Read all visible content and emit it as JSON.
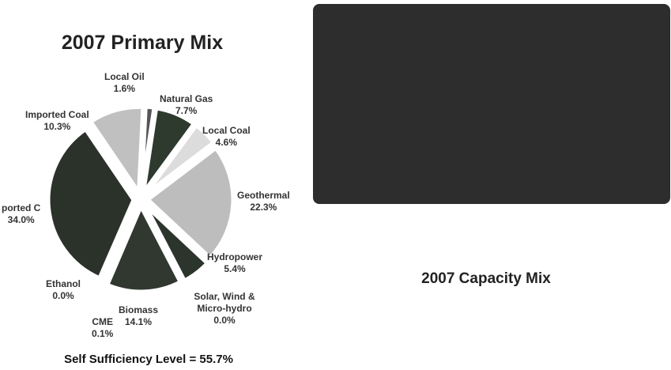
{
  "chart_data": {
    "type": "pie",
    "title": "2007  Primary Mix",
    "slices": [
      {
        "label": "Local Oil",
        "value_label": "1.6%",
        "value": 1.6,
        "color": "#555555"
      },
      {
        "label": "Natural Gas",
        "value_label": "7.7%",
        "value": 7.7,
        "color": "#2f3a2f"
      },
      {
        "label": "Local Coal",
        "value_label": "4.6%",
        "value": 4.6,
        "color": "#dcdcdc"
      },
      {
        "label": "Geothermal",
        "value_label": "22.3%",
        "value": 22.3,
        "color": "#bdbdbd"
      },
      {
        "label": "Hydropower",
        "value_label": "5.4%",
        "value": 5.4,
        "color": "#2c352c"
      },
      {
        "label": "Solar, Wind & Micro-hydro",
        "value_label": "0.0%",
        "value": 0.0,
        "color": "#ffffff"
      },
      {
        "label": "Biomass",
        "value_label": "14.1%",
        "value": 14.1,
        "color": "#303830"
      },
      {
        "label": "CME",
        "value_label": "0.1%",
        "value": 0.1,
        "color": "#aaaaaa"
      },
      {
        "label": "Ethanol",
        "value_label": "0.0%",
        "value": 0.0,
        "color": "#ffffff"
      },
      {
        "label": "ported C",
        "value_label": "34.0%",
        "value": 34.0,
        "color": "#2a322a"
      },
      {
        "label": "Imported Coal",
        "value_label": "10.3%",
        "value": 10.3,
        "color": "#c0c0c0"
      }
    ],
    "footer": "Self Sufficiency Level = 55.7%"
  },
  "capacity_chart": {
    "title": "2007 Capacity Mix"
  }
}
